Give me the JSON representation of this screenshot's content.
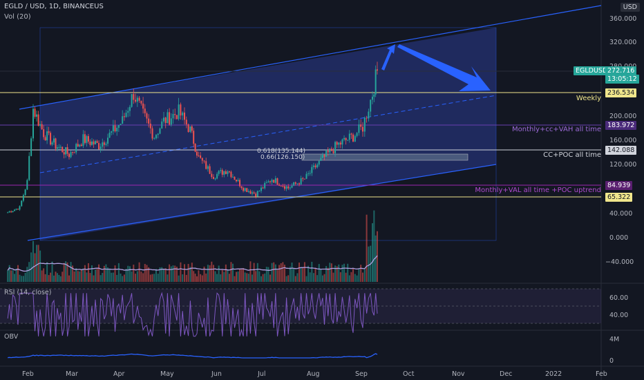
{
  "header": {
    "symbol_line": "EGLD / USD, 1D, BINANCEUS",
    "volume_label": "Vol (20)",
    "currency": "USD"
  },
  "price_axis": {
    "ticks": [
      "360.000",
      "320.000",
      "280.000",
      "200.000",
      "160.000",
      "120.000",
      "40.000",
      "0.000",
      "−40.000"
    ]
  },
  "time_axis": {
    "labels": [
      "Feb",
      "Mar",
      "Apr",
      "May",
      "Jun",
      "Jul",
      "Aug",
      "Sep",
      "Oct",
      "Nov",
      "Dec",
      "2022",
      "Feb"
    ]
  },
  "price_labels": {
    "ticker": "EGLDUSD",
    "last_price": "272.716",
    "countdown": "13:05:12",
    "weekly": "236.534",
    "monthly_vah": "183.972",
    "cc_poc": "142.088",
    "monthly_val": "84.939",
    "low_level": "65.322"
  },
  "annotations": {
    "weekly": "Weekly",
    "monthly_vah": "Monthly+cc+VAH all time",
    "cc_poc": "CC+POC all time",
    "monthly_val": "Monthly+VAL all time +POC uptrend",
    "fib_618": "0.618(135.144)",
    "fib_66": "0.66(126.150)"
  },
  "rsi": {
    "title": "RSI (14, close)",
    "ticks": [
      "60.00",
      "40.00"
    ]
  },
  "obv": {
    "title": "OBV",
    "ticks": [
      "4M",
      "0"
    ]
  },
  "colors": {
    "background": "#131722",
    "channel": "#2962ff",
    "up_candle": "#26a69a",
    "down_candle": "#ef5350",
    "yellow_level": "#f0e68c",
    "purple_level": "#9c27b0",
    "rsi_line": "#7e57c2",
    "obv_line": "#2962ff"
  },
  "chart_data": {
    "type": "candlestick",
    "symbol": "EGLD / USD",
    "interval": "1D",
    "exchange": "BINANCEUS",
    "close_path": [
      {
        "x": "Jan 20",
        "y": 40
      },
      {
        "x": "Jan 28",
        "y": 48
      },
      {
        "x": "Feb 3",
        "y": 90
      },
      {
        "x": "Feb 7",
        "y": 210
      },
      {
        "x": "Feb 14",
        "y": 170
      },
      {
        "x": "Feb 22",
        "y": 150
      },
      {
        "x": "Mar 1",
        "y": 135
      },
      {
        "x": "Mar 10",
        "y": 160
      },
      {
        "x": "Mar 20",
        "y": 150
      },
      {
        "x": "Mar 28",
        "y": 170
      },
      {
        "x": "Apr 5",
        "y": 190
      },
      {
        "x": "Apr 12",
        "y": 235
      },
      {
        "x": "Apr 18",
        "y": 200
      },
      {
        "x": "Apr 25",
        "y": 165
      },
      {
        "x": "May 1",
        "y": 190
      },
      {
        "x": "May 10",
        "y": 205
      },
      {
        "x": "May 17",
        "y": 175
      },
      {
        "x": "May 22",
        "y": 130
      },
      {
        "x": "Jun 1",
        "y": 100
      },
      {
        "x": "Jun 10",
        "y": 110
      },
      {
        "x": "Jun 20",
        "y": 80
      },
      {
        "x": "Jun 28",
        "y": 70
      },
      {
        "x": "Jul 8",
        "y": 95
      },
      {
        "x": "Jul 18",
        "y": 80
      },
      {
        "x": "Jul 28",
        "y": 95
      },
      {
        "x": "Aug 8",
        "y": 125
      },
      {
        "x": "Aug 18",
        "y": 150
      },
      {
        "x": "Aug 28",
        "y": 165
      },
      {
        "x": "Sep 4",
        "y": 180
      },
      {
        "x": "Sep 10",
        "y": 235
      },
      {
        "x": "Sep 13",
        "y": 272.716
      }
    ],
    "horizontal_levels": [
      236.534,
      183.972,
      142.088,
      84.939,
      65.322
    ],
    "fib_levels": [
      {
        "label": "0.618",
        "value": 135.144
      },
      {
        "label": "0.66",
        "value": 126.15
      }
    ]
  }
}
